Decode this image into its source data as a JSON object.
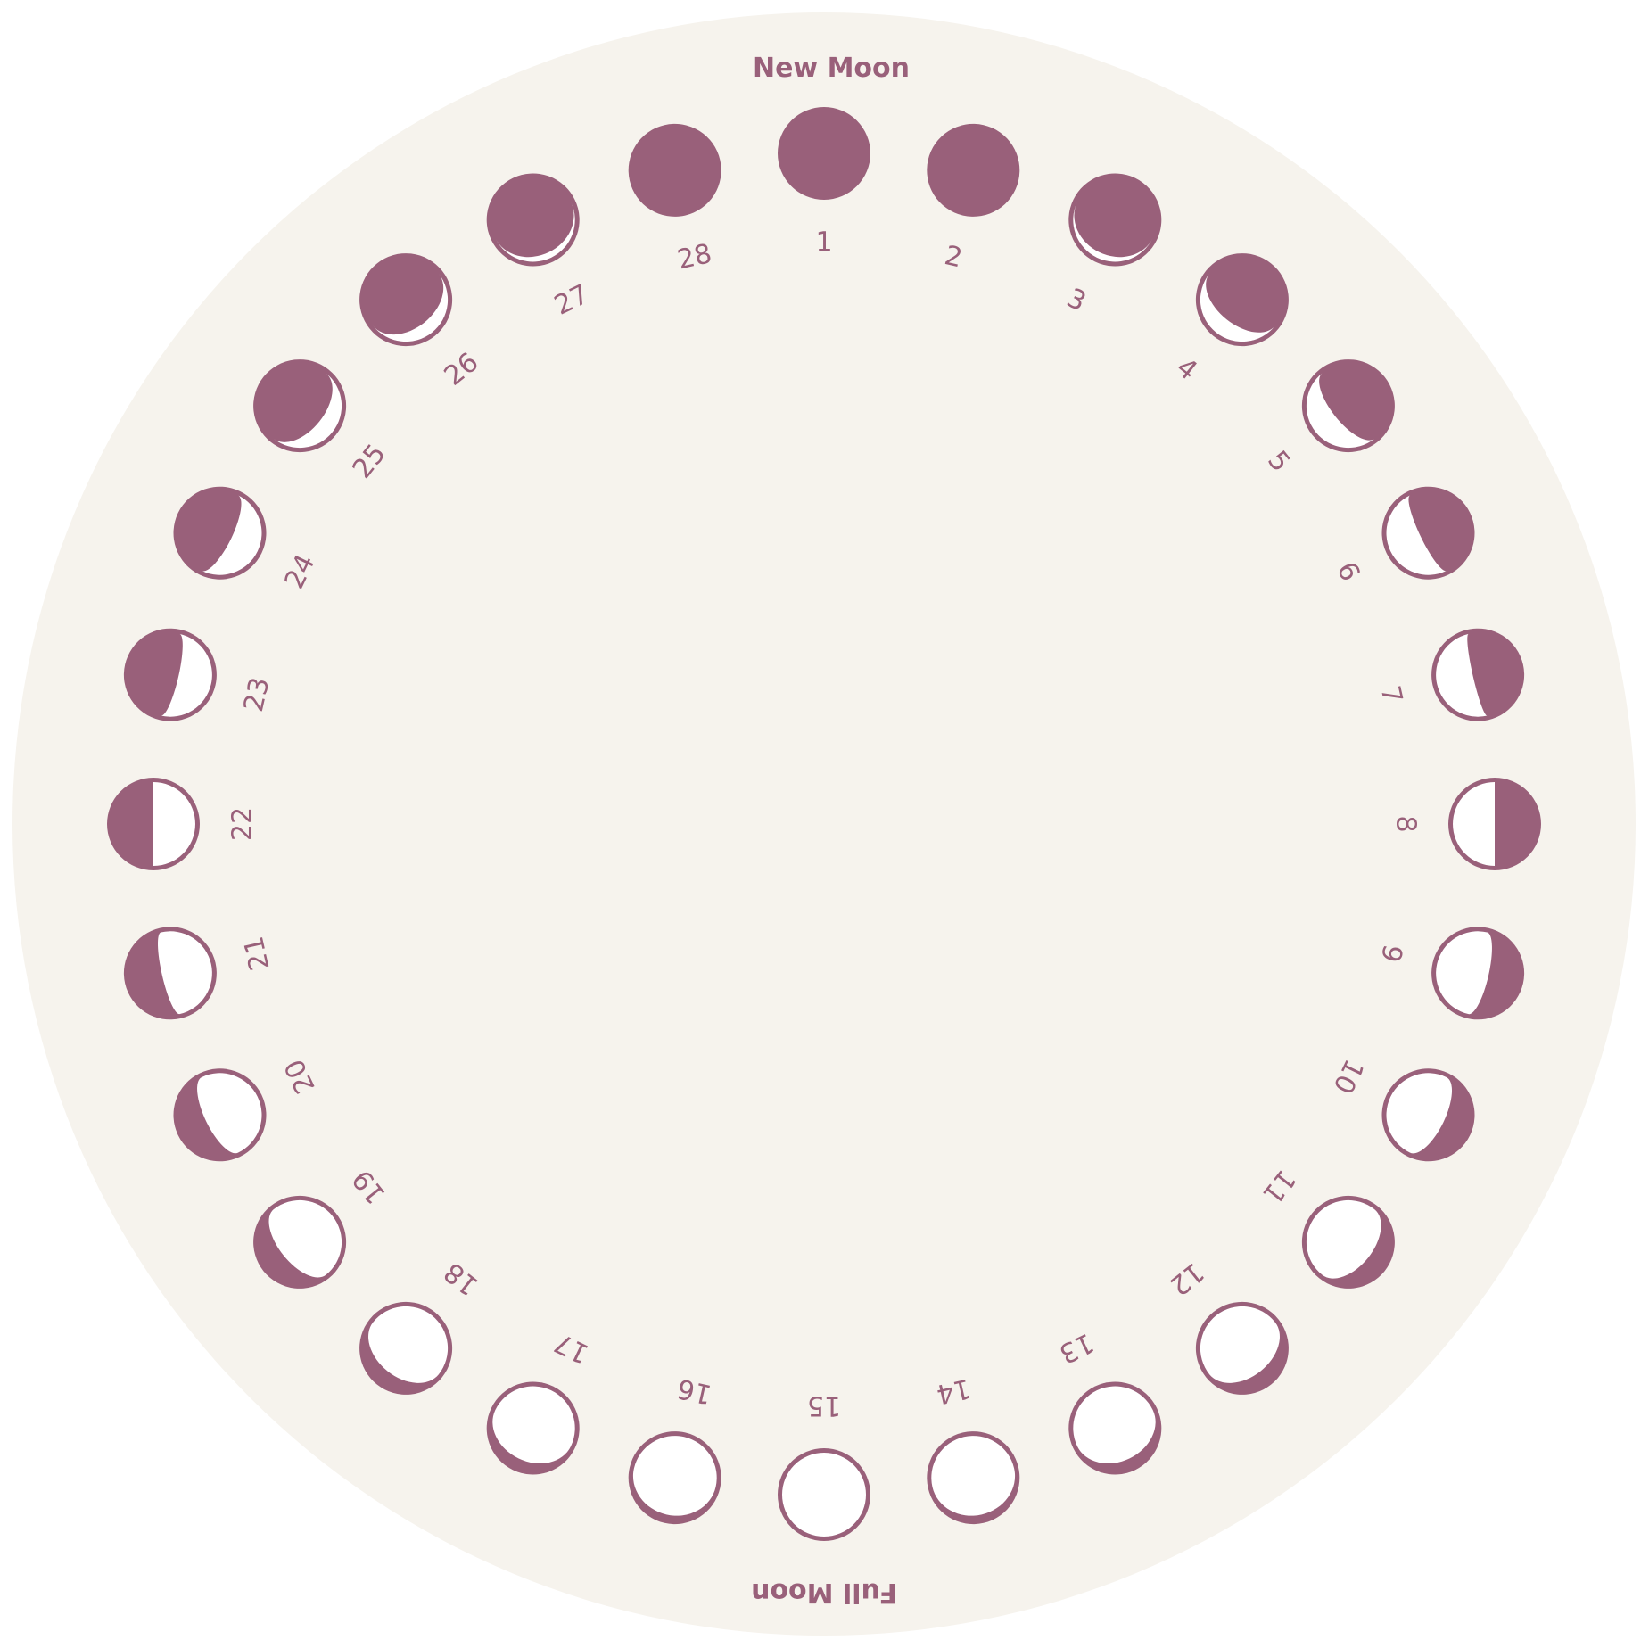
{
  "titles": {
    "top": "New Moon",
    "bottom": "Full Moon"
  },
  "colors": {
    "page": "#ffffff",
    "disc": "#f6f3ed",
    "moon": "#99607a",
    "light": "#ffffff"
  },
  "phases": [
    {
      "label": "1",
      "lit": 0.0
    },
    {
      "label": "2",
      "lit": 0.0
    },
    {
      "label": "3",
      "lit": 0.07
    },
    {
      "label": "4",
      "lit": 0.2
    },
    {
      "label": "5",
      "lit": 0.3
    },
    {
      "label": "6",
      "lit": 0.4
    },
    {
      "label": "7",
      "lit": 0.44
    },
    {
      "label": "8",
      "lit": 0.5
    },
    {
      "label": "9",
      "lit": 0.63
    },
    {
      "label": "10",
      "lit": 0.7
    },
    {
      "label": "11",
      "lit": 0.8
    },
    {
      "label": "12",
      "lit": 0.85
    },
    {
      "label": "13",
      "lit": 0.9
    },
    {
      "label": "14",
      "lit": 0.95
    },
    {
      "label": "15",
      "lit": 1.0
    },
    {
      "label": "16",
      "lit": 0.95
    },
    {
      "label": "17",
      "lit": 0.9
    },
    {
      "label": "18",
      "lit": 0.85
    },
    {
      "label": "19",
      "lit": 0.75
    },
    {
      "label": "20",
      "lit": 0.68
    },
    {
      "label": "21",
      "lit": 0.6
    },
    {
      "label": "22",
      "lit": 0.5
    },
    {
      "label": "23",
      "lit": 0.4
    },
    {
      "label": "24",
      "lit": 0.35
    },
    {
      "label": "25",
      "lit": 0.2
    },
    {
      "label": "26",
      "lit": 0.15
    },
    {
      "label": "27",
      "lit": 0.07
    },
    {
      "label": "28",
      "lit": 0.0
    }
  ]
}
